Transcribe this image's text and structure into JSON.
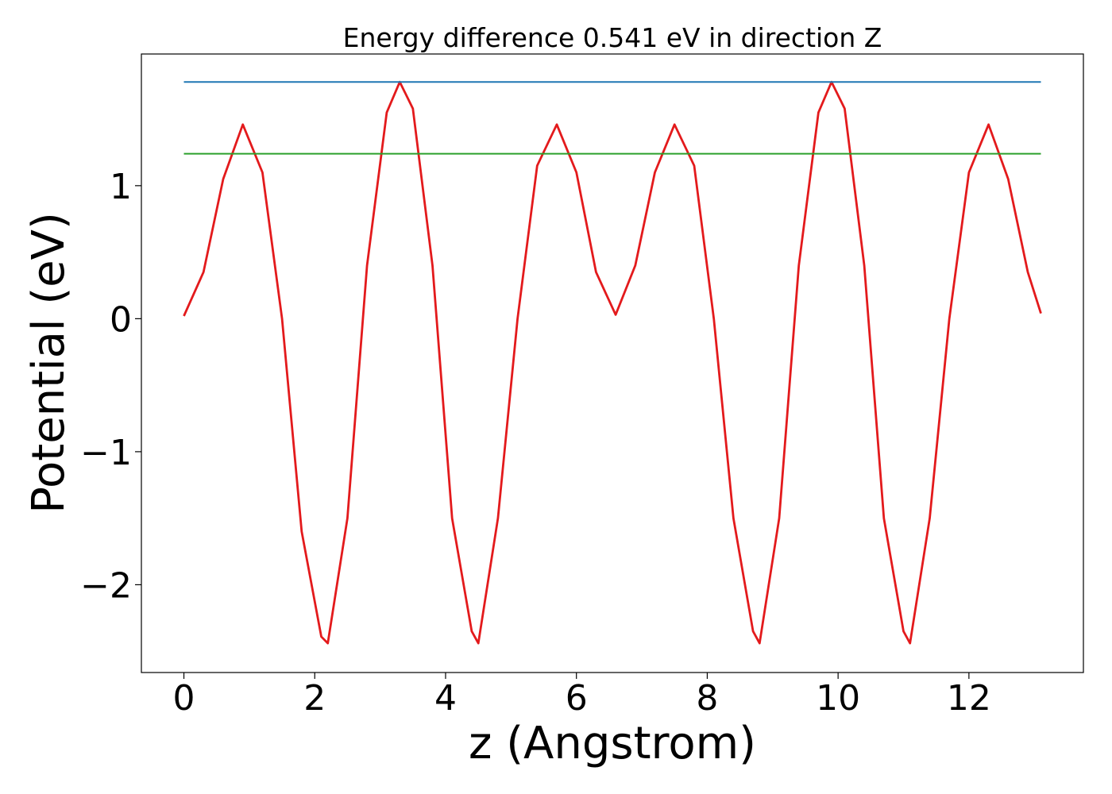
{
  "chart_data": {
    "type": "line",
    "title": "Energy difference 0.541 eV in direction Z",
    "xlabel": "z (Angstrom)",
    "ylabel": "Potential (eV)",
    "xlim": [
      -0.65,
      13.75
    ],
    "ylim": [
      -2.66,
      1.99
    ],
    "xticks": [
      0,
      2,
      4,
      6,
      8,
      10,
      12
    ],
    "xtick_labels": [
      "0",
      "2",
      "4",
      "6",
      "8",
      "10",
      "12"
    ],
    "yticks": [
      -2,
      -1,
      0,
      1
    ],
    "ytick_labels": [
      "−2",
      "−1",
      "0",
      "1"
    ],
    "grid": false,
    "series": [
      {
        "color": "#e31a1c",
        "x": [
          0.0,
          0.3,
          0.6,
          0.9,
          1.2,
          1.5,
          1.8,
          2.1,
          2.2,
          2.5,
          2.8,
          3.1,
          3.3,
          3.5,
          3.8,
          4.1,
          4.4,
          4.5,
          4.8,
          5.1,
          5.4,
          5.7,
          6.0,
          6.3,
          6.6,
          6.9,
          7.2,
          7.5,
          7.8,
          8.1,
          8.4,
          8.7,
          8.8,
          9.1,
          9.4,
          9.7,
          9.9,
          10.1,
          10.4,
          10.7,
          11.0,
          11.1,
          11.4,
          11.7,
          12.0,
          12.3,
          12.6,
          12.9,
          13.1
        ],
        "y": [
          0.02,
          0.35,
          1.05,
          1.46,
          1.1,
          0.0,
          -1.6,
          -2.39,
          -2.44,
          -1.5,
          0.4,
          1.55,
          1.78,
          1.58,
          0.4,
          -1.5,
          -2.35,
          -2.44,
          -1.5,
          0.0,
          1.15,
          1.46,
          1.1,
          0.35,
          0.03,
          0.4,
          1.1,
          1.46,
          1.15,
          0.0,
          -1.5,
          -2.35,
          -2.44,
          -1.5,
          0.4,
          1.55,
          1.78,
          1.58,
          0.4,
          -1.5,
          -2.35,
          -2.44,
          -1.5,
          0.0,
          1.1,
          1.46,
          1.05,
          0.35,
          0.04
        ]
      },
      {
        "color": "#1f77b4",
        "x": [
          0.0,
          13.1
        ],
        "y": [
          1.78,
          1.78
        ]
      },
      {
        "color": "#2ca02c",
        "x": [
          0.0,
          13.1
        ],
        "y": [
          1.24,
          1.24
        ]
      }
    ]
  }
}
